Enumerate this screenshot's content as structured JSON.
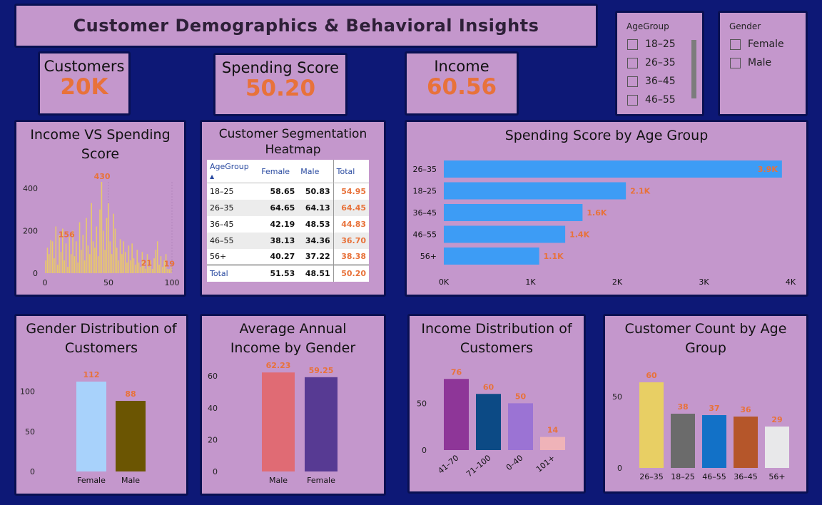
{
  "title": "Customer Demographics & Behavioral Insights",
  "kpis": {
    "customers": {
      "label": "Customers",
      "value": "20K"
    },
    "spending": {
      "label": "Spending Score",
      "value": "50.20"
    },
    "income": {
      "label": "Income",
      "value": "60.56"
    }
  },
  "slicers": {
    "age": {
      "title": "AgeGroup",
      "options": [
        "18–25",
        "26–35",
        "36–45",
        "46–55"
      ]
    },
    "gender": {
      "title": "Gender",
      "options": [
        "Female",
        "Male"
      ]
    }
  },
  "colors": {
    "accent": "#e8723a",
    "background": "#0d1876",
    "card": "#c497cc",
    "histogram": "#e9c96a",
    "barBlue": "#3d9cf5"
  },
  "charts": {
    "income_vs_spending": {
      "title": "Income VS Spending Score"
    },
    "heatmap": {
      "title": "Customer Segmentation Heatmap"
    },
    "spend_by_age": {
      "title": "Spending Score by Age Group"
    },
    "gender_dist": {
      "title": "Gender Distribution of Customers"
    },
    "avg_income": {
      "title": "Average Annual Income by Gender"
    },
    "income_dist": {
      "title": "Income Distribution of Customers"
    },
    "count_by_age": {
      "title": "Customer Count by Age Group"
    }
  },
  "chart_data": [
    {
      "id": "income_vs_spending",
      "type": "bar",
      "title": "Income VS Spending Score",
      "xlim": [
        0,
        100
      ],
      "ylim": [
        0,
        430
      ],
      "x_ticks": [
        "0",
        "50",
        "100"
      ],
      "y_ticks": [
        "0",
        "200",
        "400"
      ],
      "values": [
        60,
        120,
        90,
        156,
        150,
        70,
        220,
        40,
        180,
        100,
        210,
        60,
        140,
        30,
        170,
        90,
        200,
        80,
        150,
        50,
        240,
        110,
        180,
        60,
        260,
        130,
        90,
        330,
        150,
        120,
        220,
        80,
        300,
        430,
        200,
        110,
        260,
        330,
        150,
        90,
        280,
        210,
        120,
        60,
        160,
        90,
        150,
        100,
        50,
        130,
        60,
        140,
        70,
        40,
        110,
        50,
        30,
        100,
        60,
        21,
        90,
        30,
        60,
        20,
        70,
        110,
        150,
        40,
        80,
        30,
        60,
        90,
        20,
        19,
        30
      ],
      "annotations": [
        {
          "x": 17,
          "value": 156
        },
        {
          "x": 45,
          "value": 430
        },
        {
          "x": 80,
          "value": 21
        },
        {
          "x": 98,
          "value": 19
        }
      ]
    },
    {
      "id": "heatmap",
      "type": "table",
      "title": "Customer Segmentation Heatmap",
      "columns": [
        "AgeGroup",
        "Female",
        "Male",
        "Total"
      ],
      "rows": [
        [
          "18–25",
          "58.65",
          "50.83",
          "54.95"
        ],
        [
          "26–35",
          "64.65",
          "64.13",
          "64.45"
        ],
        [
          "36–45",
          "42.19",
          "48.53",
          "44.83"
        ],
        [
          "46–55",
          "38.13",
          "34.36",
          "36.70"
        ],
        [
          "56+",
          "40.27",
          "37.22",
          "38.38"
        ]
      ],
      "total_row": [
        "Total",
        "51.53",
        "48.51",
        "50.20"
      ]
    },
    {
      "id": "spend_by_age",
      "type": "bar",
      "orientation": "horizontal",
      "title": "Spending Score by Age Group",
      "categories": [
        "26–35",
        "18–25",
        "36–45",
        "46–55",
        "56+"
      ],
      "values": [
        3900,
        2100,
        1600,
        1400,
        1100
      ],
      "labels": [
        "3.9K",
        "2.1K",
        "1.6K",
        "1.4K",
        "1.1K"
      ],
      "xlim": [
        0,
        4000
      ],
      "x_ticks": [
        "0K",
        "1K",
        "2K",
        "3K",
        "4K"
      ]
    },
    {
      "id": "gender_dist",
      "type": "bar",
      "title": "Gender Distribution of Customers",
      "categories": [
        "Female",
        "Male"
      ],
      "values": [
        112,
        88
      ],
      "colors": [
        "#a8d2fb",
        "#6b5502"
      ],
      "ylim": [
        0,
        120
      ],
      "y_ticks": [
        0,
        50,
        100
      ]
    },
    {
      "id": "avg_income",
      "type": "bar",
      "title": "Average Annual Income by Gender",
      "categories": [
        "Male",
        "Female"
      ],
      "values": [
        62.23,
        59.25
      ],
      "colors": [
        "#e06b74",
        "#573a93"
      ],
      "ylim": [
        0,
        65
      ],
      "y_ticks": [
        0,
        20,
        40,
        60
      ]
    },
    {
      "id": "income_dist",
      "type": "bar",
      "title": "Income Distribution of Customers",
      "categories": [
        "41–70",
        "71–100",
        "0–40",
        "101+"
      ],
      "values": [
        76,
        60,
        50,
        14
      ],
      "colors": [
        "#8e3698",
        "#0c4a85",
        "#9b73d4",
        "#efb3b8"
      ],
      "ylim": [
        0,
        80
      ],
      "y_ticks": [
        0,
        50
      ]
    },
    {
      "id": "count_by_age",
      "type": "bar",
      "title": "Customer Count by Age Group",
      "categories": [
        "26–35",
        "18–25",
        "46–55",
        "36–45",
        "56+"
      ],
      "values": [
        60,
        38,
        37,
        36,
        29
      ],
      "colors": [
        "#e8cf64",
        "#6b6b6b",
        "#1271c7",
        "#b5562a",
        "#e8e8ea"
      ],
      "ylim": [
        0,
        65
      ],
      "y_ticks": [
        0,
        50
      ]
    }
  ]
}
